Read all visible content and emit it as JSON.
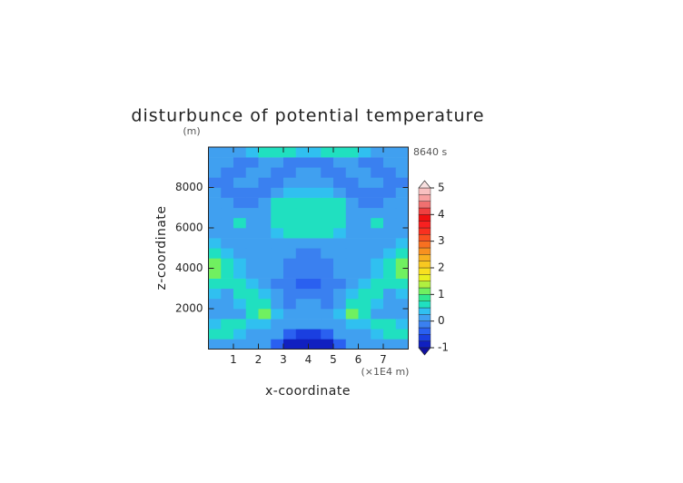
{
  "chart_data": {
    "type": "filled-contour",
    "title": "disturbunce of potential temperature",
    "y_unit": "(m)",
    "time_label": "8640 s",
    "y_label": "z-coordinate",
    "x_label": "x-coordinate",
    "x_unit": "(×1E4 m)",
    "xlim": [
      0,
      8
    ],
    "ylim": [
      0,
      10000
    ],
    "xticks": [
      1,
      2,
      3,
      4,
      5,
      6,
      7
    ],
    "yticks": [
      2000,
      4000,
      6000,
      8000
    ],
    "levels": [
      -1,
      -0.75,
      -0.5,
      -0.25,
      0,
      0.25,
      0.5,
      0.75,
      1,
      1.25,
      1.5,
      1.75,
      2,
      2.25,
      2.5,
      2.75,
      3,
      3.25,
      3.5,
      3.75,
      4,
      4.25,
      4.5,
      4.75,
      5
    ],
    "colors": [
      "#1020c0",
      "#1a3fe0",
      "#2a60f0",
      "#3a80f0",
      "#40a0f0",
      "#30c0f0",
      "#20e0c0",
      "#30e890",
      "#70f060",
      "#b0f040",
      "#e8f020",
      "#f8e020",
      "#f8c820",
      "#f8b020",
      "#f89020",
      "#f87020",
      "#f85020",
      "#f83020",
      "#f82020",
      "#f01010",
      "#f04040",
      "#f07070",
      "#f8a0a0",
      "#f8c0c0"
    ],
    "under_color": "#1010a0",
    "over_color": "#f8e0e0",
    "colorbar_ticks": [
      -1,
      0,
      1,
      2,
      3,
      4,
      5
    ],
    "z": [
      [
        0.1,
        0.1,
        0.1,
        0.1,
        0.1,
        -0.4,
        -0.8,
        -0.8,
        -0.8,
        -0.8,
        -0.4,
        0.1,
        0.1,
        0.1,
        0.1,
        0.1
      ],
      [
        0.6,
        0.6,
        0.3,
        0.1,
        0.1,
        0.1,
        -0.4,
        -0.6,
        -0.6,
        -0.4,
        0.1,
        0.1,
        0.1,
        0.3,
        0.6,
        0.6
      ],
      [
        0.3,
        0.6,
        0.6,
        0.3,
        0.3,
        0.1,
        0.1,
        0.1,
        0.1,
        0.1,
        0.1,
        0.3,
        0.3,
        0.6,
        0.6,
        0.3
      ],
      [
        0.1,
        0.1,
        0.1,
        0.6,
        1.2,
        0.3,
        0.1,
        0.1,
        0.1,
        0.1,
        0.3,
        1.2,
        0.6,
        0.1,
        0.1,
        0.1
      ],
      [
        0.1,
        0.1,
        0.3,
        0.6,
        0.6,
        0.1,
        -0.2,
        0.1,
        0.1,
        -0.2,
        0.1,
        0.6,
        0.6,
        0.3,
        0.1,
        0.1
      ],
      [
        0.3,
        0.1,
        0.6,
        0.6,
        0.3,
        0.1,
        -0.2,
        -0.2,
        -0.2,
        -0.2,
        0.1,
        0.3,
        0.6,
        0.6,
        0.1,
        0.3
      ],
      [
        0.6,
        0.6,
        0.6,
        0.3,
        0.1,
        -0.2,
        -0.2,
        -0.4,
        -0.4,
        -0.2,
        -0.2,
        0.1,
        0.3,
        0.6,
        0.6,
        0.6
      ],
      [
        1.2,
        0.6,
        0.3,
        0.1,
        0.1,
        0.1,
        -0.2,
        -0.2,
        -0.2,
        -0.2,
        0.1,
        0.1,
        0.1,
        0.3,
        0.6,
        1.2
      ],
      [
        1.2,
        0.6,
        0.3,
        0.1,
        0.1,
        0.1,
        -0.2,
        -0.2,
        -0.2,
        -0.2,
        0.1,
        0.1,
        0.1,
        0.3,
        0.6,
        1.2
      ],
      [
        0.6,
        0.3,
        0.1,
        0.1,
        0.1,
        0.1,
        0.1,
        -0.2,
        -0.2,
        0.1,
        0.1,
        0.1,
        0.1,
        0.1,
        0.3,
        0.6
      ],
      [
        0.3,
        0.1,
        0.1,
        0.1,
        0.1,
        0.1,
        0.1,
        0.1,
        0.1,
        0.1,
        0.1,
        0.1,
        0.1,
        0.1,
        0.1,
        0.3
      ],
      [
        0.1,
        0.1,
        0.1,
        0.1,
        0.1,
        0.3,
        0.6,
        0.6,
        0.6,
        0.6,
        0.3,
        0.1,
        0.1,
        0.1,
        0.1,
        0.1
      ],
      [
        0.1,
        0.1,
        0.6,
        0.1,
        0.1,
        0.6,
        0.6,
        0.6,
        0.6,
        0.6,
        0.6,
        0.1,
        0.1,
        0.6,
        0.1,
        0.1
      ],
      [
        0.1,
        0.1,
        0.1,
        0.1,
        0.1,
        0.6,
        0.6,
        0.6,
        0.6,
        0.6,
        0.6,
        0.1,
        0.1,
        0.1,
        0.1,
        0.1
      ],
      [
        0.1,
        0.1,
        -0.2,
        -0.2,
        0.1,
        0.6,
        0.6,
        0.6,
        0.6,
        0.6,
        0.6,
        0.1,
        -0.2,
        -0.2,
        0.1,
        0.1
      ],
      [
        0.1,
        -0.2,
        -0.2,
        -0.2,
        -0.2,
        0.1,
        0.3,
        0.3,
        0.3,
        0.3,
        0.1,
        -0.2,
        -0.2,
        -0.2,
        -0.2,
        0.1
      ],
      [
        -0.2,
        -0.2,
        0.1,
        0.1,
        -0.2,
        -0.2,
        0.1,
        0.1,
        0.1,
        0.1,
        -0.2,
        -0.2,
        0.1,
        0.1,
        -0.2,
        -0.2
      ],
      [
        0.1,
        -0.2,
        -0.2,
        0.1,
        0.1,
        -0.2,
        -0.2,
        0.1,
        0.1,
        -0.2,
        -0.2,
        0.1,
        0.1,
        -0.2,
        -0.2,
        0.1
      ],
      [
        0.1,
        0.1,
        -0.2,
        -0.2,
        0.1,
        0.1,
        -0.2,
        -0.2,
        -0.2,
        -0.2,
        0.1,
        0.1,
        -0.2,
        -0.2,
        0.1,
        0.1
      ],
      [
        0,
        0,
        0,
        0.3,
        0.6,
        0.6,
        0.6,
        0.3,
        0.3,
        0.6,
        0.6,
        0.6,
        0.3,
        0,
        0,
        0
      ]
    ]
  }
}
